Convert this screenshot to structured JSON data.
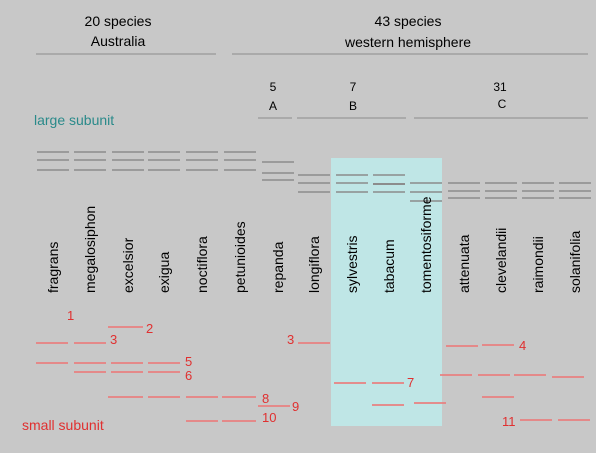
{
  "groups": {
    "australia": {
      "count": "20 species",
      "region": "Australia"
    },
    "western": {
      "count": "43 species",
      "region": "western hemisphere"
    }
  },
  "subgroups": [
    {
      "count": "5",
      "letter": "A"
    },
    {
      "count": "7",
      "letter": "B"
    },
    {
      "count": "31",
      "letter": "C"
    }
  ],
  "labels": {
    "large_subunit": "large subunit",
    "small_subunit": "small subunit"
  },
  "species": [
    "fragrans",
    "megalosiphon",
    "excelsior",
    "exigua",
    "noctiflora",
    "petunioides",
    "repanda",
    "longiflora",
    "sylvestris",
    "tabacum",
    "tomentosiforme",
    "attenuata",
    "clevelandii",
    "raimondii",
    "solanifolia"
  ],
  "highlighted_species": [
    "sylvestris",
    "tabacum",
    "tomentosiforme"
  ],
  "band_numbers": [
    "1",
    "2",
    "3",
    "3",
    "4",
    "5",
    "6",
    "7",
    "8",
    "9",
    "10",
    "11"
  ],
  "colors": {
    "background": "#c8c8c8",
    "highlight": "#bfe6e6",
    "large_subunit": "#2a8a8a",
    "small_subunit": "#e03030",
    "large_band": "#8c8c8c",
    "small_band": "#e88080",
    "rule": "#8c8c8c",
    "text": "#000000"
  }
}
